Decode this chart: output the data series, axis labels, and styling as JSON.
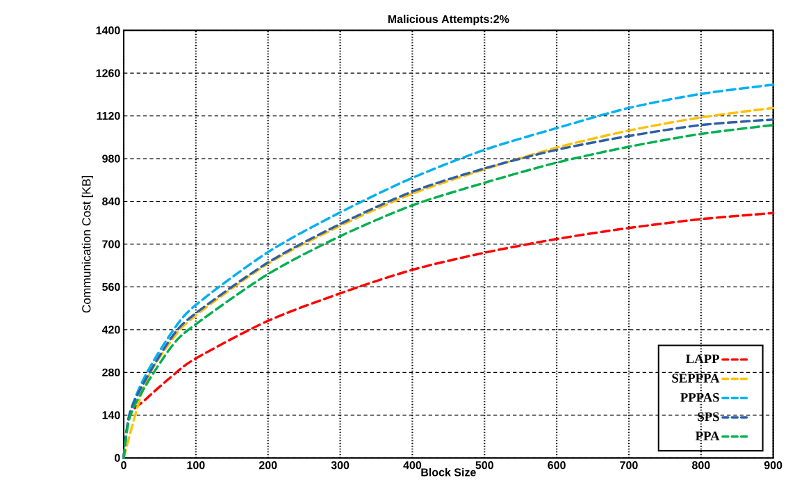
{
  "chart_data": {
    "type": "line",
    "title": "Malicious Attempts:2%",
    "xlabel": "Block Size",
    "ylabel": "Communication Cost [KB]",
    "x": [
      0,
      8,
      30,
      68,
      100,
      200,
      300,
      400,
      500,
      600,
      700,
      800,
      900
    ],
    "series": [
      {
        "name": "LAPP",
        "color": "#ff0000",
        "values": [
          0,
          137,
          191,
          270,
          326,
          449,
          539,
          616,
          672,
          717,
          753,
          782,
          802
        ]
      },
      {
        "name": "SEPPPA",
        "color": "#ffc000",
        "values": [
          0,
          null,
          245,
          390,
          467,
          636,
          760,
          865,
          945,
          1016,
          1072,
          1115,
          1146
        ]
      },
      {
        "name": "PPPAS",
        "color": "#00b0f0",
        "values": [
          0,
          142,
          270,
          416,
          501,
          674,
          804,
          917,
          1009,
          1080,
          1146,
          1192,
          1222
        ]
      },
      {
        "name": "SPS",
        "color": "#2e5fa8",
        "values": [
          0,
          142,
          255,
          400,
          474,
          640,
          766,
          872,
          948,
          1009,
          1054,
          1090,
          1108
        ]
      },
      {
        "name": "PPA",
        "color": "#00b050",
        "values": [
          0,
          130,
          235,
          370,
          438,
          602,
          726,
          827,
          901,
          967,
          1019,
          1061,
          1090
        ]
      }
    ],
    "xlim": [
      0,
      900
    ],
    "xticks": [
      0,
      100,
      200,
      300,
      400,
      500,
      600,
      700,
      800,
      900
    ],
    "ylim": [
      0,
      1400
    ],
    "yticks": [
      0,
      140,
      280,
      420,
      560,
      700,
      840,
      980,
      1120,
      1260,
      1400
    ],
    "grid": true,
    "legend": "bottom right",
    "marker": "none",
    "line_style": "dashed"
  }
}
